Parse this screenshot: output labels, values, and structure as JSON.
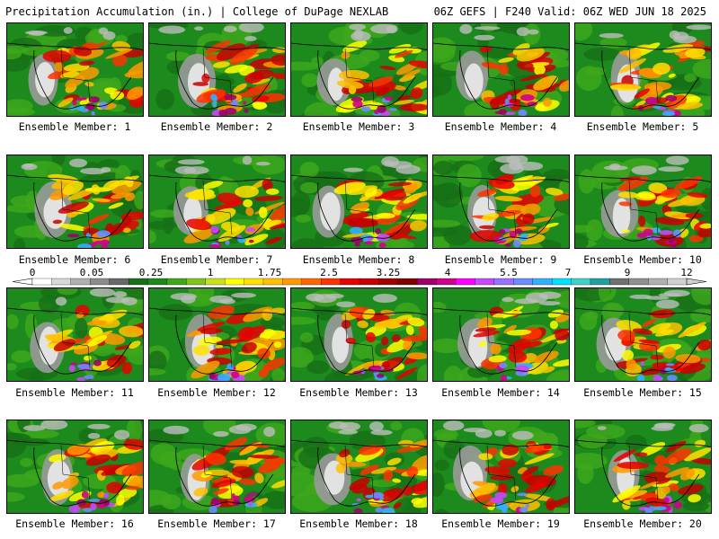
{
  "header": {
    "left": "Precipitation Accumulation (in.) | College of DuPage NEXLAB",
    "right": "06Z GEFS | F240 Valid: 06Z WED JUN 18 2025"
  },
  "colorbar": {
    "labels": [
      "0",
      "0.05",
      "0.25",
      "1",
      "1.75",
      "2.5",
      "3.25",
      "4",
      "5.5",
      "7",
      "9",
      "12"
    ],
    "colors": [
      "#ffffff",
      "#d8d8d8",
      "#b0b0b0",
      "#8c8c8c",
      "#686868",
      "#1a6e1a",
      "#1d8a1d",
      "#3fa71b",
      "#7fc31c",
      "#c8e01e",
      "#ffff00",
      "#ffe000",
      "#ffc000",
      "#ff9900",
      "#ff6600",
      "#ff3300",
      "#e60000",
      "#c80000",
      "#a00000",
      "#800000",
      "#a0006a",
      "#d0008a",
      "#ff00ff",
      "#c848ff",
      "#9a70ff",
      "#6a8cff",
      "#30b0ff",
      "#00e0ff",
      "#40d0c8",
      "#20a0a0",
      "#707070",
      "#909090",
      "#b0b0b0",
      "#d0d0d0"
    ]
  },
  "panels": [
    {
      "label": "Ensemble Member: 1"
    },
    {
      "label": "Ensemble Member: 2"
    },
    {
      "label": "Ensemble Member: 3"
    },
    {
      "label": "Ensemble Member: 4"
    },
    {
      "label": "Ensemble Member: 5"
    },
    {
      "label": "Ensemble Member: 6"
    },
    {
      "label": "Ensemble Member: 7"
    },
    {
      "label": "Ensemble Member: 8"
    },
    {
      "label": "Ensemble Member: 9"
    },
    {
      "label": "Ensemble Member: 10"
    },
    {
      "label": "Ensemble Member: 11"
    },
    {
      "label": "Ensemble Member: 12"
    },
    {
      "label": "Ensemble Member: 13"
    },
    {
      "label": "Ensemble Member: 14"
    },
    {
      "label": "Ensemble Member: 15"
    },
    {
      "label": "Ensemble Member: 16"
    },
    {
      "label": "Ensemble Member: 17"
    },
    {
      "label": "Ensemble Member: 18"
    },
    {
      "label": "Ensemble Member: 19"
    },
    {
      "label": "Ensemble Member: 20"
    }
  ]
}
